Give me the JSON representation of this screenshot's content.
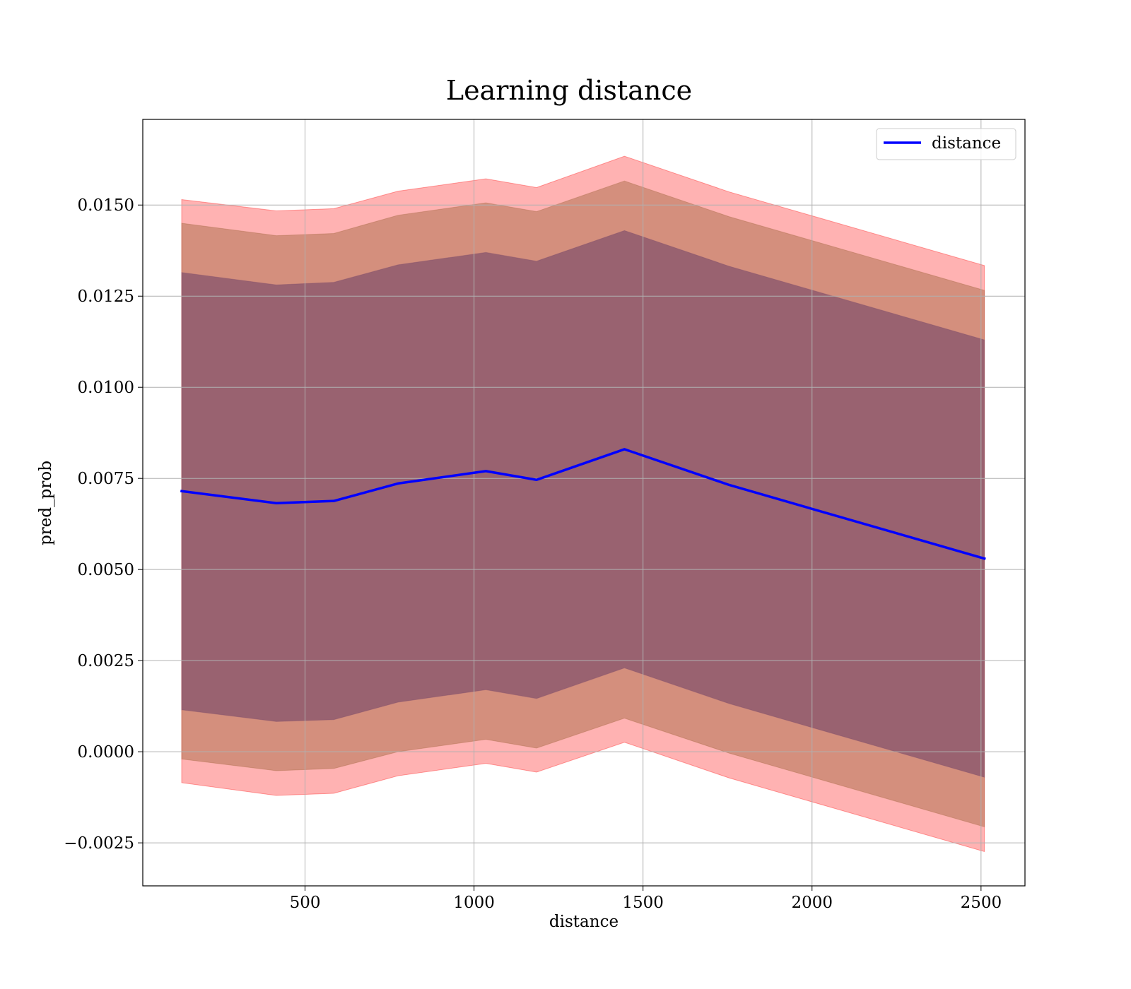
{
  "chart_data": {
    "type": "line",
    "title": "Learning distance",
    "xlabel": "distance",
    "ylabel": "pred_prob",
    "xlim": [
      20,
      2630
    ],
    "ylim": [
      -0.00368,
      0.01735
    ],
    "xticks": [
      500,
      1000,
      1500,
      2000,
      2500
    ],
    "xtick_labels": [
      "500",
      "1000",
      "1500",
      "2000",
      "2500"
    ],
    "yticks": [
      -0.0025,
      0.0,
      0.0025,
      0.005,
      0.0075,
      0.01,
      0.0125,
      0.015
    ],
    "ytick_labels": [
      "−0.0025",
      "0.0000",
      "0.0025",
      "0.0050",
      "0.0075",
      "0.0100",
      "0.0125",
      "0.0150"
    ],
    "grid": true,
    "legend_position": "top-right",
    "x": [
      135,
      415,
      585,
      775,
      1035,
      1185,
      1445,
      1755,
      2510
    ],
    "series": [
      {
        "name": "distance",
        "color": "#0000ff",
        "values": [
          0.00715,
          0.00682,
          0.00688,
          0.00736,
          0.0077,
          0.00746,
          0.0083,
          0.00732,
          0.0053
        ]
      }
    ],
    "bands": [
      {
        "color": "#ff0000",
        "opacity": 0.3,
        "lower": [
          -0.00085,
          -0.0012,
          -0.00114,
          -0.00066,
          -0.00032,
          -0.00056,
          0.00026,
          -0.00072,
          -0.00274
        ],
        "upper": [
          0.01515,
          0.01484,
          0.0149,
          0.01538,
          0.01572,
          0.01548,
          0.01634,
          0.01536,
          0.01334
        ]
      },
      {
        "color": "#a0643c",
        "opacity": 0.45,
        "lower": [
          -0.0002,
          -0.00052,
          -0.00046,
          0.0,
          0.00034,
          0.0001,
          0.00092,
          -4e-05,
          -0.00206
        ],
        "upper": [
          0.0145,
          0.01416,
          0.01422,
          0.01472,
          0.01506,
          0.01482,
          0.01566,
          0.01468,
          0.01266
        ]
      },
      {
        "color": "#7a4a6a",
        "opacity": 0.65,
        "lower": [
          0.00115,
          0.00083,
          0.00088,
          0.00136,
          0.0017,
          0.00146,
          0.0023,
          0.00132,
          -0.0007
        ],
        "upper": [
          0.01315,
          0.01281,
          0.01288,
          0.01336,
          0.0137,
          0.01346,
          0.0143,
          0.01332,
          0.0113
        ]
      }
    ]
  }
}
